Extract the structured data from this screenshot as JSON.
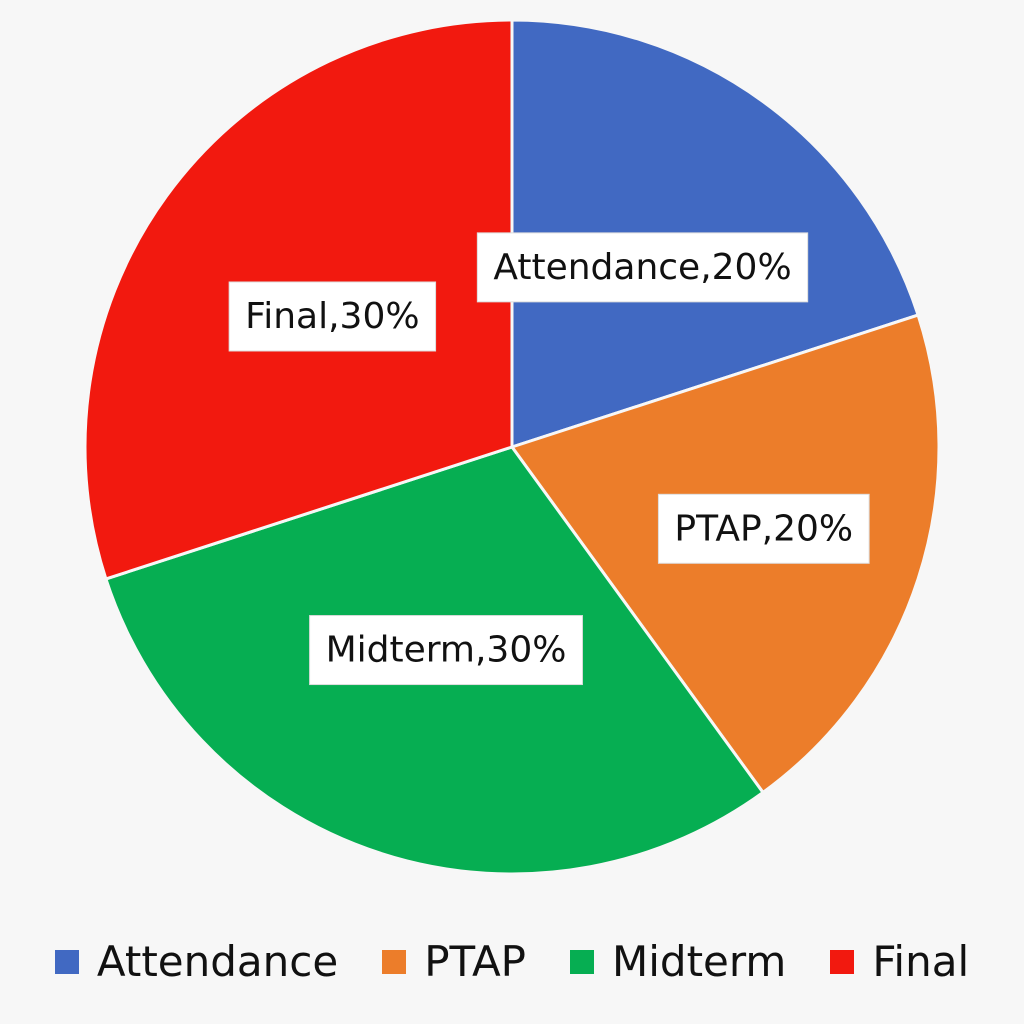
{
  "chart_data": {
    "type": "pie",
    "categories": [
      "Attendance",
      "PTAP",
      "Midterm",
      "Final"
    ],
    "values": [
      20,
      20,
      30,
      30
    ],
    "data_labels": [
      "Attendance,20%",
      "PTAP,20%",
      "Midterm,30%",
      "Final,30%"
    ],
    "colors": [
      "#4169c2",
      "#ec7d2a",
      "#06ae52",
      "#f2190f"
    ],
    "start_angle_deg": 0,
    "direction": "clockwise",
    "legend_position": "bottom"
  }
}
